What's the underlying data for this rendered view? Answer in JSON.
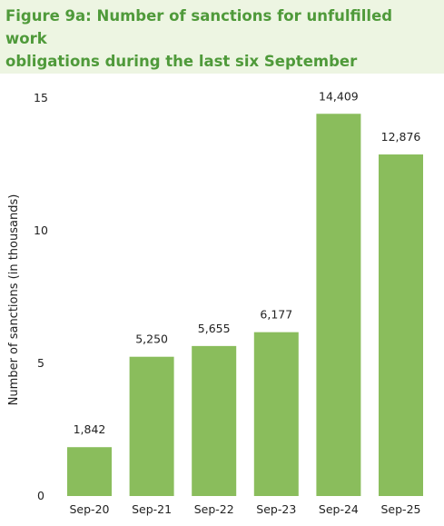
{
  "title_lines": [
    "Figure 9a: Number of sanctions for unfulfilled work",
    "obligations during the last six September quarters."
  ],
  "chart_data": {
    "type": "bar",
    "categories": [
      "Sep-20",
      "Sep-21",
      "Sep-22",
      "Sep-23",
      "Sep-24",
      "Sep-25"
    ],
    "values": [
      1.842,
      5.25,
      5.655,
      6.177,
      14.409,
      12.876
    ],
    "data_labels": [
      "1,842",
      "5,250",
      "5,655",
      "6,177",
      "14,409",
      "12,876"
    ],
    "ylabel": "Number of sanctions (in thousands)",
    "xlabel": "",
    "ylim": [
      0,
      15
    ],
    "yticks": [
      0,
      5,
      10,
      15
    ],
    "bar_color": "#8abd5c",
    "grid": false,
    "legend": "none"
  }
}
